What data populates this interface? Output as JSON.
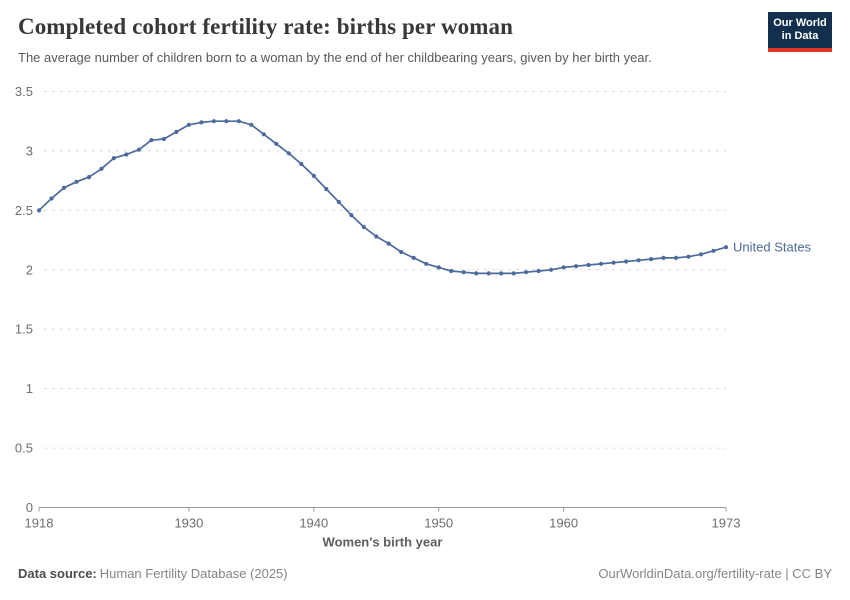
{
  "header": {
    "title": "Completed cohort fertility rate: births per woman",
    "subtitle": "The average number of children born to a woman by the end of her childbearing years, given by her birth year.",
    "logo": {
      "line1": "Our World",
      "line2": "in Data",
      "bg_color": "#12304e",
      "accent_color": "#e0362c"
    }
  },
  "chart_data": {
    "type": "line",
    "title": "Completed cohort fertility rate: births per woman",
    "xlabel": "Women's birth year",
    "ylabel": "",
    "xlim": [
      1918,
      1973
    ],
    "ylim": [
      0,
      3.5
    ],
    "xticks": [
      1918,
      1930,
      1940,
      1950,
      1960,
      1973
    ],
    "yticks": [
      0,
      0.5,
      1,
      1.5,
      2,
      2.5,
      3,
      3.5
    ],
    "grid": "horizontal-dashed",
    "legend": "end-of-line-label",
    "series": [
      {
        "name": "United States",
        "color": "#4C6A9C",
        "x": [
          1918,
          1919,
          1920,
          1921,
          1922,
          1923,
          1924,
          1925,
          1926,
          1927,
          1928,
          1929,
          1930,
          1931,
          1932,
          1933,
          1934,
          1935,
          1936,
          1937,
          1938,
          1939,
          1940,
          1941,
          1942,
          1943,
          1944,
          1945,
          1946,
          1947,
          1948,
          1949,
          1950,
          1951,
          1952,
          1953,
          1954,
          1955,
          1956,
          1957,
          1958,
          1959,
          1960,
          1961,
          1962,
          1963,
          1964,
          1965,
          1966,
          1967,
          1968,
          1969,
          1970,
          1971,
          1972,
          1973
        ],
        "values": [
          2.5,
          2.6,
          2.69,
          2.74,
          2.78,
          2.85,
          2.94,
          2.97,
          3.01,
          3.09,
          3.1,
          3.16,
          3.22,
          3.24,
          3.25,
          3.25,
          3.25,
          3.22,
          3.14,
          3.06,
          2.98,
          2.89,
          2.79,
          2.68,
          2.57,
          2.46,
          2.36,
          2.28,
          2.22,
          2.15,
          2.1,
          2.05,
          2.02,
          1.99,
          1.98,
          1.97,
          1.97,
          1.97,
          1.97,
          1.98,
          1.99,
          2.0,
          2.02,
          2.03,
          2.04,
          2.05,
          2.06,
          2.07,
          2.08,
          2.09,
          2.1,
          2.1,
          2.11,
          2.13,
          2.16,
          2.19
        ]
      }
    ]
  },
  "footer": {
    "source_label": "Data source:",
    "source_value": "Human Fertility Database (2025)",
    "credit": "OurWorldinData.org/fertility-rate | CC BY"
  }
}
